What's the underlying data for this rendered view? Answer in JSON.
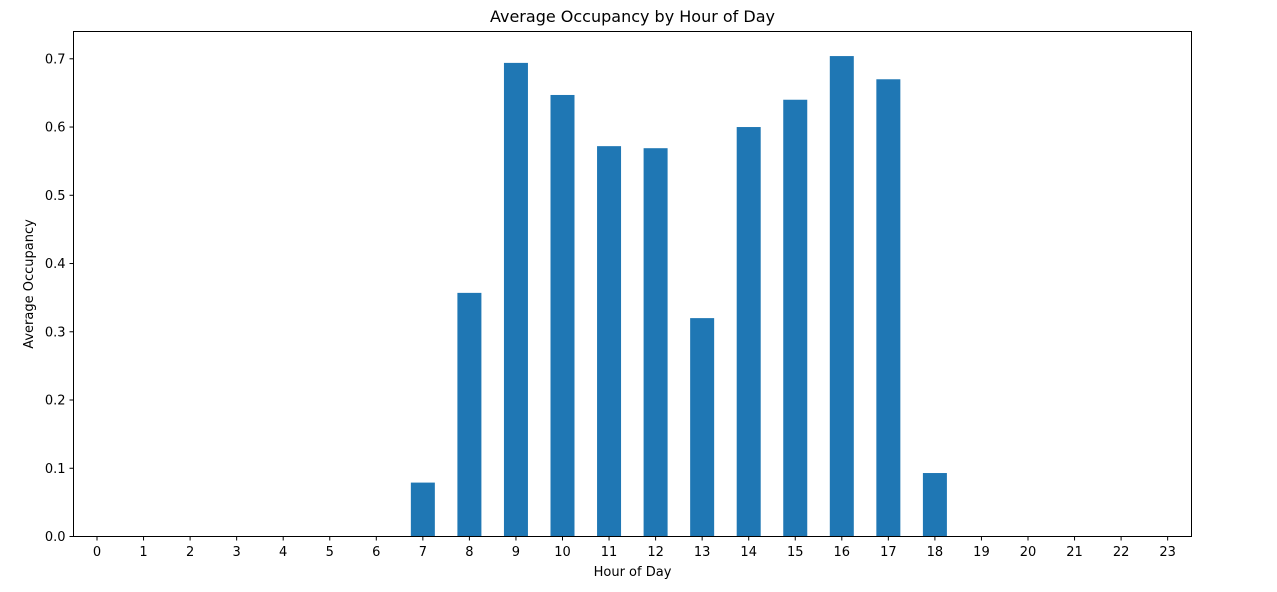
{
  "chart_data": {
    "type": "bar",
    "title": "Average Occupancy by Hour of Day",
    "xlabel": "Hour of Day",
    "ylabel": "Average Occupancy",
    "categories": [
      "0",
      "1",
      "2",
      "3",
      "4",
      "5",
      "6",
      "7",
      "8",
      "9",
      "10",
      "11",
      "12",
      "13",
      "14",
      "15",
      "16",
      "17",
      "18",
      "19",
      "20",
      "21",
      "22",
      "23"
    ],
    "values": [
      0,
      0,
      0,
      0,
      0,
      0,
      0,
      0.079,
      0.357,
      0.694,
      0.647,
      0.572,
      0.569,
      0.32,
      0.6,
      0.64,
      0.704,
      0.67,
      0.093,
      0,
      0,
      0,
      0,
      0
    ],
    "ylim": [
      0,
      0.74
    ],
    "yticks": [
      0.0,
      0.1,
      0.2,
      0.3,
      0.4,
      0.5,
      0.6,
      0.7
    ],
    "ytick_labels": [
      "0.0",
      "0.1",
      "0.2",
      "0.3",
      "0.4",
      "0.5",
      "0.6",
      "0.7"
    ],
    "grid": false,
    "bar_color": "#1f77b4"
  }
}
